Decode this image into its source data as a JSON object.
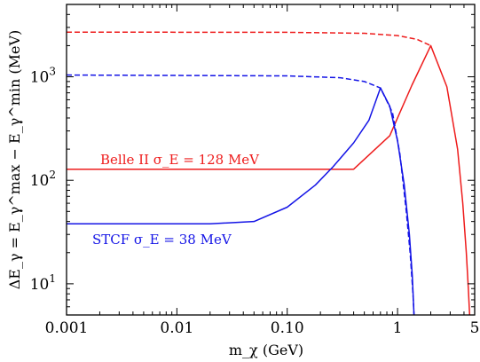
{
  "chart_data": {
    "type": "line",
    "title": "",
    "xlabel": "m_χ (GeV)",
    "ylabel": "ΔE_γ = E_γ^max − E_γ^min (MeV)",
    "xscale": "log",
    "yscale": "log",
    "xlim": [
      0.001,
      5
    ],
    "ylim": [
      5,
      5000
    ],
    "x_ticks": [
      {
        "value": 0.001,
        "label": "0.001"
      },
      {
        "value": 0.01,
        "label": "0.01"
      },
      {
        "value": 0.1,
        "label": "0.10"
      },
      {
        "value": 1,
        "label": "1"
      },
      {
        "value": 5,
        "label": "5"
      }
    ],
    "y_ticks": [
      {
        "value": 10,
        "label": "10",
        "exp": "1"
      },
      {
        "value": 100,
        "label": "10",
        "exp": "2"
      },
      {
        "value": 1000,
        "label": "10",
        "exp": "3"
      }
    ],
    "grid": false,
    "colors": {
      "belle": "#ee1c1c",
      "stcf": "#1414e6"
    },
    "series": [
      {
        "key": "belle_solid",
        "color": "#ee1c1c",
        "style": "solid",
        "points": [
          [
            0.001,
            128
          ],
          [
            0.4,
            128
          ],
          [
            0.85,
            270
          ],
          [
            1.35,
            830
          ],
          [
            2.0,
            2000
          ],
          [
            2.8,
            800
          ],
          [
            3.5,
            200
          ],
          [
            3.9,
            60
          ],
          [
            4.2,
            20
          ],
          [
            4.38,
            9
          ],
          [
            4.5,
            5
          ]
        ]
      },
      {
        "key": "belle_dashed",
        "color": "#ee1c1c",
        "style": "dashed",
        "points": [
          [
            0.001,
            2700
          ],
          [
            0.1,
            2690
          ],
          [
            0.5,
            2630
          ],
          [
            1.0,
            2500
          ],
          [
            1.5,
            2300
          ],
          [
            2.0,
            2000
          ]
        ]
      },
      {
        "key": "stcf_solid",
        "color": "#1414e6",
        "style": "solid",
        "points": [
          [
            0.001,
            38
          ],
          [
            0.02,
            38
          ],
          [
            0.05,
            40
          ],
          [
            0.1,
            55
          ],
          [
            0.18,
            90
          ],
          [
            0.26,
            135
          ],
          [
            0.4,
            230
          ],
          [
            0.55,
            380
          ],
          [
            0.7,
            780
          ],
          [
            0.85,
            520
          ],
          [
            1.0,
            240
          ],
          [
            1.15,
            90
          ],
          [
            1.28,
            30
          ],
          [
            1.36,
            12
          ],
          [
            1.41,
            5
          ]
        ]
      },
      {
        "key": "stcf_dashed",
        "color": "#1414e6",
        "style": "dashed",
        "points": [
          [
            0.001,
            1040
          ],
          [
            0.1,
            1020
          ],
          [
            0.3,
            980
          ],
          [
            0.5,
            900
          ],
          [
            0.7,
            780
          ],
          [
            0.9,
            450
          ],
          [
            1.05,
            180
          ],
          [
            1.2,
            50
          ],
          [
            1.3,
            20
          ],
          [
            1.38,
            8
          ],
          [
            1.41,
            5
          ]
        ]
      }
    ],
    "annotations": [
      {
        "key": "belle",
        "text": "Belle II σ_E = 128 MeV",
        "color": "#ee1c1c"
      },
      {
        "key": "stcf",
        "text": "STCF σ_E = 38 MeV",
        "color": "#1414e6"
      }
    ]
  }
}
